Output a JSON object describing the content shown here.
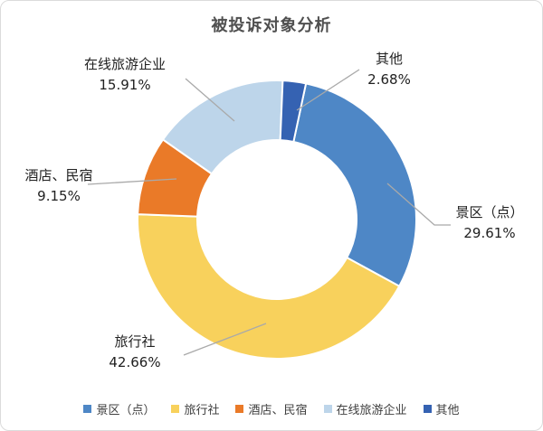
{
  "title": "被投诉对象分析",
  "chart_data": {
    "type": "pie",
    "subtype": "donut",
    "title": "被投诉对象分析",
    "legend_position": "bottom",
    "start_angle_deg_cw_from_top": 12,
    "inner_radius_ratio": 0.57,
    "leader_line_color": "#a9a9a9",
    "slices": [
      {
        "key": "scenic-spots",
        "label": "景区（点）",
        "value": 29.61,
        "pct_label": "29.61%",
        "color": "#4e87c6"
      },
      {
        "key": "travel-agency",
        "label": "旅行社",
        "value": 42.66,
        "pct_label": "42.66%",
        "color": "#f8d15c"
      },
      {
        "key": "hotel-homestay",
        "label": "酒店、民宿",
        "value": 9.15,
        "pct_label": "9.15%",
        "color": "#ea7a28"
      },
      {
        "key": "online-travel",
        "label": "在线旅游企业",
        "value": 15.91,
        "pct_label": "15.91%",
        "color": "#bdd5ea"
      },
      {
        "key": "other",
        "label": "其他",
        "value": 2.68,
        "pct_label": "2.68%",
        "color": "#3562b2"
      }
    ]
  }
}
